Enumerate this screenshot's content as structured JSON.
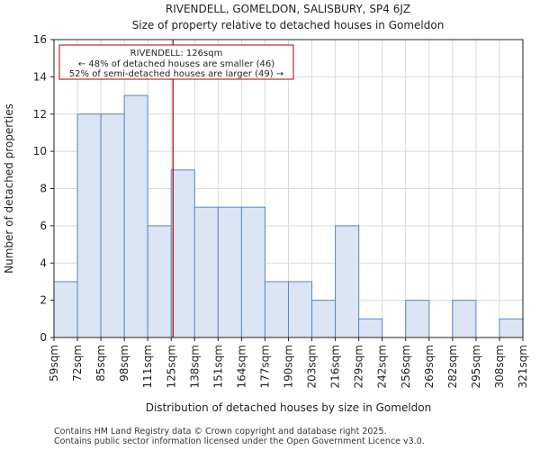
{
  "chart_data": {
    "type": "bar",
    "title_line1": "RIVENDELL, GOMELDON, SALISBURY, SP4 6JZ",
    "title_line2": "Size of property relative to detached houses in Gomeldon",
    "xlabel": "Distribution of detached houses by size in Gomeldon",
    "ylabel": "Number of detached properties",
    "bin_edges": [
      59,
      72,
      85,
      98,
      111,
      125,
      138,
      151,
      164,
      177,
      190,
      203,
      216,
      229,
      242,
      256,
      269,
      282,
      295,
      308,
      321
    ],
    "tick_labels": [
      "59sqm",
      "72sqm",
      "85sqm",
      "98sqm",
      "111sqm",
      "125sqm",
      "138sqm",
      "151sqm",
      "164sqm",
      "177sqm",
      "190sqm",
      "203sqm",
      "216sqm",
      "229sqm",
      "242sqm",
      "256sqm",
      "269sqm",
      "282sqm",
      "295sqm",
      "308sqm",
      "321sqm"
    ],
    "values": [
      3,
      12,
      12,
      13,
      6,
      9,
      7,
      7,
      7,
      3,
      3,
      2,
      6,
      1,
      0,
      2,
      0,
      2,
      0,
      1
    ],
    "yticks": [
      0,
      2,
      4,
      6,
      8,
      10,
      12,
      14,
      16
    ],
    "ylim": [
      0,
      16
    ],
    "grid": true,
    "bar_color": "#dae4f4",
    "bar_edge_color": "#5a86c6",
    "marker": {
      "value": 126,
      "color": "#aa0000",
      "annotation": [
        "RIVENDELL: 126sqm",
        "← 48% of detached houses are smaller (46)",
        "52% of semi-detached houses are larger (49) →"
      ]
    }
  },
  "footer": {
    "line1": "Contains HM Land Registry data © Crown copyright and database right 2025.",
    "line2": "Contains public sector information licensed under the Open Government Licence v3.0."
  }
}
